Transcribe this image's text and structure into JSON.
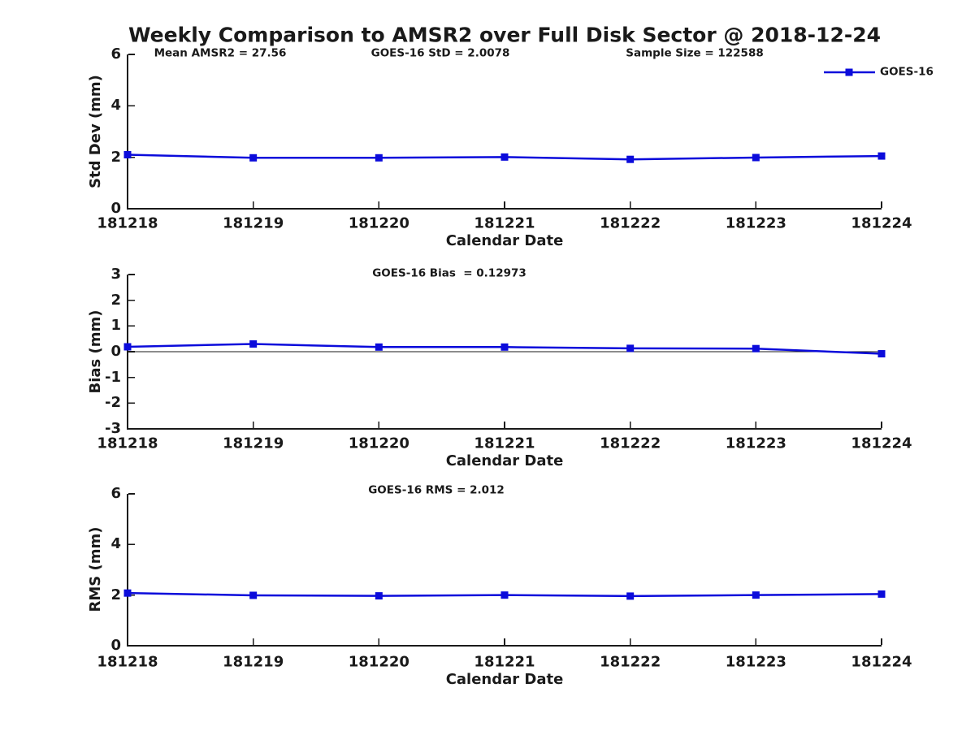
{
  "title": "Weekly Comparison to AMSR2 over Full Disk Sector @ 2018-12-24",
  "colors": {
    "line": "#0b0bdb",
    "axis": "#1a1a1a",
    "text": "#1a1a1a"
  },
  "legend": {
    "label": "GOES-16",
    "position": "top-right"
  },
  "chart_data": [
    {
      "type": "line",
      "name": "std-dev",
      "title": "",
      "ylabel": "Std Dev (mm)",
      "xlabel": "Calendar Date",
      "categories": [
        "181218",
        "181219",
        "181220",
        "181221",
        "181222",
        "181223",
        "181224"
      ],
      "series": [
        {
          "name": "GOES-16",
          "values": [
            2.1,
            1.98,
            1.98,
            2.01,
            1.92,
            1.99,
            2.05
          ]
        }
      ],
      "ylim": [
        0,
        6
      ],
      "yticks": [
        0,
        2,
        4,
        6
      ],
      "grid": false,
      "zero_line": false,
      "legend_position": "top-right",
      "annotations": [
        "Mean AMSR2 = 27.56",
        "GOES-16 StD = 2.0078",
        "Sample Size = 122588"
      ]
    },
    {
      "type": "line",
      "name": "bias",
      "title": "",
      "ylabel": "Bias (mm)",
      "xlabel": "Calendar Date",
      "categories": [
        "181218",
        "181219",
        "181220",
        "181221",
        "181222",
        "181223",
        "181224"
      ],
      "series": [
        {
          "name": "GOES-16",
          "values": [
            0.19,
            0.3,
            0.18,
            0.18,
            0.13,
            0.12,
            -0.08
          ]
        }
      ],
      "ylim": [
        -3,
        3
      ],
      "yticks": [
        -3,
        -2,
        -1,
        0,
        1,
        2,
        3
      ],
      "grid": false,
      "zero_line": true,
      "annotations": [
        "GOES-16 Bias  = 0.12973"
      ]
    },
    {
      "type": "line",
      "name": "rms",
      "title": "",
      "ylabel": "RMS (mm)",
      "xlabel": "Calendar Date",
      "categories": [
        "181218",
        "181219",
        "181220",
        "181221",
        "181222",
        "181223",
        "181224"
      ],
      "series": [
        {
          "name": "GOES-16",
          "values": [
            2.08,
            1.99,
            1.97,
            2.0,
            1.96,
            2.0,
            2.04
          ]
        }
      ],
      "ylim": [
        0,
        6
      ],
      "yticks": [
        0,
        2,
        4,
        6
      ],
      "grid": false,
      "zero_line": false,
      "annotations": [
        "GOES-16 RMS = 2.012"
      ]
    }
  ]
}
